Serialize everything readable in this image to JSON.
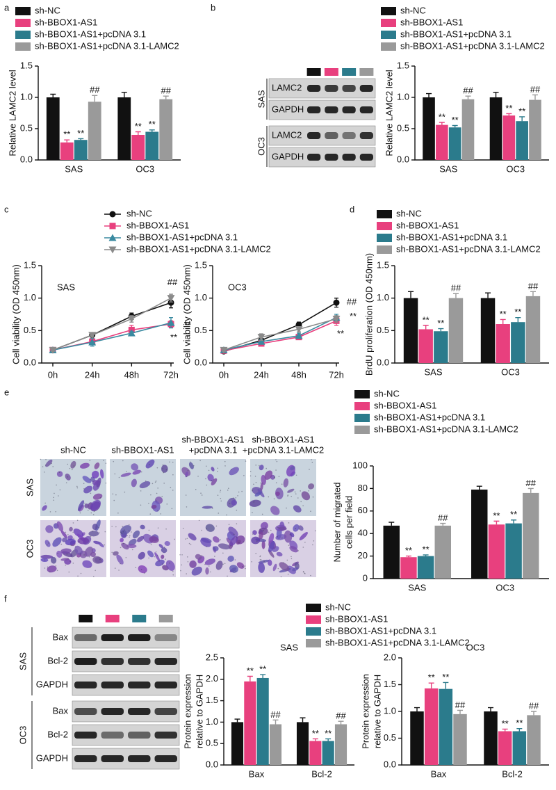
{
  "panel_letters": [
    "a",
    "b",
    "c",
    "d",
    "e",
    "f"
  ],
  "blots": [
    {
      "groups": [
        {
          "name": "SAS",
          "rows": [
            "LAMC2",
            "GAPDH"
          ]
        },
        {
          "name": "OC3",
          "rows": [
            "LAMC2",
            "GAPDH"
          ]
        }
      ]
    },
    {
      "groups": [
        {
          "name": "SAS",
          "rows": [
            "Bax",
            "Bcl-2",
            "GAPDH"
          ]
        },
        {
          "name": "OC3",
          "rows": [
            "Bax",
            "Bcl-2",
            "GAPDH"
          ]
        }
      ]
    }
  ],
  "migration": {
    "columns": [
      [
        "sh-NC"
      ],
      [
        "sh-BBOX1-AS1"
      ],
      [
        "sh-BBOX1-AS1",
        "+pcDNA 3.1"
      ],
      [
        "sh-BBOX1-AS1",
        "+pcDNA 3.1-LAMC2"
      ]
    ],
    "rows": [
      "SAS",
      "OC3"
    ]
  },
  "chart_data": [
    {
      "type": "bar",
      "ylabel": "Relative LAMC2 level",
      "categories": [
        "SAS",
        "OC3"
      ],
      "ylim": [
        0,
        1.5
      ],
      "yticks": [
        {
          "value": 0,
          "label": "0.0"
        },
        0.5,
        {
          "value": 1,
          "label": "1.0"
        },
        1.5
      ],
      "legend": true,
      "series": [
        {
          "name": "sh-NC",
          "color": "#111111",
          "values": [
            1.0,
            1.0
          ],
          "errors": [
            0.05,
            0.08
          ]
        },
        {
          "name": "sh-BBOX1-AS1",
          "color": "#e8407e",
          "values": [
            0.28,
            0.4
          ],
          "errors": [
            0.04,
            0.05
          ],
          "annotations": [
            "**",
            "**"
          ]
        },
        {
          "name": "sh-BBOX1-AS1+pcDNA 3.1",
          "color": "#2b7b8c",
          "values": [
            0.32,
            0.45
          ],
          "errors": [
            0.02,
            0.03
          ],
          "annotations": [
            "**",
            "**"
          ]
        },
        {
          "name": "sh-BBOX1-AS1+pcDNA 3.1-LAMC2",
          "color": "#9a9a9a",
          "values": [
            0.93,
            0.97
          ],
          "errors": [
            0.1,
            0.05
          ],
          "annotations": [
            "##",
            "##"
          ]
        }
      ]
    },
    {
      "type": "bar",
      "ylabel": "Relative LAMC2 level",
      "categories": [
        "SAS",
        "OC3"
      ],
      "ylim": [
        0,
        1.5
      ],
      "yticks": [
        {
          "value": 0,
          "label": "0.0"
        },
        0.5,
        {
          "value": 1,
          "label": "1.0"
        },
        1.5
      ],
      "legend": true,
      "series": [
        {
          "name": "sh-NC",
          "color": "#111111",
          "values": [
            1.0,
            1.0
          ],
          "errors": [
            0.06,
            0.08
          ]
        },
        {
          "name": "sh-BBOX1-AS1",
          "color": "#e8407e",
          "values": [
            0.56,
            0.71
          ],
          "errors": [
            0.04,
            0.03
          ],
          "annotations": [
            "**",
            "**"
          ]
        },
        {
          "name": "sh-BBOX1-AS1+pcDNA 3.1",
          "color": "#2b7b8c",
          "values": [
            0.52,
            0.62
          ],
          "errors": [
            0.03,
            0.07
          ],
          "annotations": [
            "**",
            "**"
          ]
        },
        {
          "name": "sh-BBOX1-AS1+pcDNA 3.1-LAMC2",
          "color": "#9a9a9a",
          "values": [
            0.97,
            0.96
          ],
          "errors": [
            0.05,
            0.08
          ],
          "annotations": [
            "##",
            "##"
          ]
        }
      ]
    },
    {
      "type": "line",
      "title": "SAS",
      "ylabel": "Cell viability (OD 450nm)",
      "categories": [
        "0h",
        "24h",
        "48h",
        "72h"
      ],
      "ylim": [
        0,
        1.5
      ],
      "yticks": [
        {
          "value": 0,
          "label": "0.0"
        },
        0.5,
        {
          "value": 1,
          "label": "1.0"
        },
        1.5
      ],
      "legend": true,
      "series": [
        {
          "name": "sh-NC",
          "color": "#111111",
          "marker": "circle",
          "values": [
            0.2,
            0.43,
            0.72,
            0.93
          ],
          "errors": [
            0.02,
            0.03,
            0.05,
            0.08
          ]
        },
        {
          "name": "sh-BBOX1-AS1",
          "color": "#e8407e",
          "marker": "square",
          "values": [
            0.2,
            0.33,
            0.51,
            0.6
          ],
          "errors": [
            0.02,
            0.03,
            0.07,
            0.05
          ],
          "annotations": [
            null,
            null,
            null,
            "**"
          ]
        },
        {
          "name": "sh-BBOX1-AS1+pcDNA 3.1",
          "color": "#3a8aa0",
          "marker": "triangle",
          "values": [
            0.2,
            0.32,
            0.46,
            0.62
          ],
          "errors": [
            0.02,
            0.06,
            0.03,
            0.08
          ],
          "annotations": [
            null,
            null,
            null,
            "**"
          ]
        },
        {
          "name": "sh-BBOX1-AS1+pcDNA 3.1-LAMC2",
          "color": "#8a8a8a",
          "marker": "triangle-down",
          "values": [
            0.2,
            0.43,
            0.68,
            1.0
          ],
          "errors": [
            0.02,
            0.03,
            0.05,
            0.06
          ],
          "annotations": [
            null,
            null,
            null,
            "##"
          ]
        }
      ]
    },
    {
      "type": "line",
      "title": "OC3",
      "ylabel": "Cell viability (OD 450nm)",
      "categories": [
        "0h",
        "24h",
        "48h",
        "72h"
      ],
      "ylim": [
        0,
        1.5
      ],
      "yticks": [
        {
          "value": 0,
          "label": "0.0"
        },
        0.5,
        {
          "value": 1,
          "label": "1.0"
        },
        1.5
      ],
      "series": [
        {
          "color": "#111111",
          "marker": "circle",
          "values": [
            0.18,
            0.35,
            0.59,
            0.93
          ],
          "errors": [
            0.02,
            0.03,
            0.04,
            0.07
          ],
          "annotations": [
            null,
            null,
            null,
            "##"
          ]
        },
        {
          "color": "#e8407e",
          "marker": "square",
          "values": [
            0.19,
            0.3,
            0.4,
            0.65
          ],
          "errors": [
            0.02,
            0.03,
            0.04,
            0.07
          ],
          "annotations": [
            null,
            null,
            null,
            "**"
          ]
        },
        {
          "color": "#3a8aa0",
          "marker": "triangle",
          "values": [
            0.2,
            0.33,
            0.42,
            0.7
          ],
          "errors": [
            0.02,
            0.03,
            0.04,
            0.05
          ],
          "annotations": [
            null,
            null,
            null,
            "**"
          ]
        },
        {
          "color": "#8a8a8a",
          "marker": "triangle-down",
          "values": [
            0.2,
            0.4,
            0.52,
            0.68
          ],
          "errors": [
            0.02,
            0.05,
            0.04,
            0.05
          ]
        }
      ]
    },
    {
      "type": "bar",
      "ylabel": "BrdU proliferation (OD 450nm)",
      "categories": [
        "SAS",
        "OC3"
      ],
      "ylim": [
        0,
        1.5
      ],
      "yticks": [
        {
          "value": 0,
          "label": "0.0"
        },
        0.5,
        {
          "value": 1,
          "label": "1.0"
        },
        1.5
      ],
      "legend": true,
      "series": [
        {
          "name": "sh-NC",
          "color": "#111111",
          "values": [
            1.0,
            1.0
          ],
          "errors": [
            0.1,
            0.08
          ]
        },
        {
          "name": "sh-BBOX1-AS1",
          "color": "#e8407e",
          "values": [
            0.52,
            0.6
          ],
          "errors": [
            0.06,
            0.07
          ],
          "annotations": [
            "**",
            "**"
          ]
        },
        {
          "name": "sh-BBOX1-AS1+pcDNA 3.1",
          "color": "#2b7b8c",
          "values": [
            0.49,
            0.63
          ],
          "errors": [
            0.04,
            0.07
          ],
          "annotations": [
            "**",
            "**"
          ]
        },
        {
          "name": "sh-BBOX1-AS1+pcDNA 3.1-LAMC2",
          "color": "#9a9a9a",
          "values": [
            1.0,
            1.03
          ],
          "errors": [
            0.07,
            0.07
          ],
          "annotations": [
            "##",
            "##"
          ]
        }
      ]
    },
    {
      "type": "bar",
      "ylabel": [
        "Number of migrated",
        "cells per field"
      ],
      "categories": [
        "SAS",
        "OC3"
      ],
      "ylim": [
        0,
        100
      ],
      "yticks": [
        0,
        20,
        40,
        60,
        80,
        100
      ],
      "legend": true,
      "series": [
        {
          "name": "sh-NC",
          "color": "#111111",
          "values": [
            47,
            79
          ],
          "errors": [
            3,
            3
          ]
        },
        {
          "name": "sh-BBOX1-AS1",
          "color": "#e8407e",
          "values": [
            19,
            48
          ],
          "errors": [
            1,
            3
          ],
          "annotations": [
            "**",
            "**"
          ]
        },
        {
          "name": "sh-BBOX1-AS1+pcDNA 3.1",
          "color": "#2b7b8c",
          "values": [
            20,
            49
          ],
          "errors": [
            1,
            3
          ],
          "annotations": [
            "**",
            "**"
          ]
        },
        {
          "name": "sh-BBOX1-AS1+pcDNA 3.1-LAMC2",
          "color": "#9a9a9a",
          "values": [
            47,
            76
          ],
          "errors": [
            2,
            4
          ],
          "annotations": [
            "##",
            "##"
          ]
        }
      ]
    },
    {
      "type": "bar",
      "title": "SAS",
      "ylabel": [
        "Protein expression",
        "relative to GAPDH"
      ],
      "categories": [
        "Bax",
        "Bcl-2"
      ],
      "ylim": [
        0,
        2.5
      ],
      "yticks": [
        {
          "value": 0,
          "label": "0.0"
        },
        0.5,
        {
          "value": 1,
          "label": "1.0"
        },
        1.5,
        {
          "value": 2,
          "label": "2.0"
        },
        2.5
      ],
      "legend": true,
      "series": [
        {
          "name": "sh-NC",
          "color": "#111111",
          "values": [
            1.0,
            1.0
          ],
          "errors": [
            0.07,
            0.1
          ]
        },
        {
          "name": "sh-BBOX1-AS1",
          "color": "#e8407e",
          "values": [
            1.95,
            0.56
          ],
          "errors": [
            0.12,
            0.05
          ],
          "annotations": [
            "**",
            "**"
          ]
        },
        {
          "name": "sh-BBOX1-AS1+pcDNA 3.1",
          "color": "#2b7b8c",
          "values": [
            2.03,
            0.56
          ],
          "errors": [
            0.08,
            0.05
          ],
          "annotations": [
            "**",
            "**"
          ]
        },
        {
          "name": "sh-BBOX1-AS1+pcDNA 3.1-LAMC2",
          "color": "#9a9a9a",
          "values": [
            0.95,
            0.95
          ],
          "errors": [
            0.1,
            0.07
          ],
          "annotations": [
            "##",
            "##"
          ]
        }
      ]
    },
    {
      "type": "bar",
      "title": "OC3",
      "ylabel": [
        "Protein expression",
        "relative to GAPDH"
      ],
      "categories": [
        "Bax",
        "Bcl-2"
      ],
      "ylim": [
        0,
        2
      ],
      "yticks": [
        {
          "value": 0,
          "label": "0.0"
        },
        0.5,
        {
          "value": 1,
          "label": "1.0"
        },
        1.5,
        {
          "value": 2,
          "label": "2.0"
        }
      ],
      "series": [
        {
          "color": "#111111",
          "values": [
            1.0,
            1.0
          ],
          "errors": [
            0.07,
            0.07
          ]
        },
        {
          "color": "#e8407e",
          "values": [
            1.43,
            0.63
          ],
          "errors": [
            0.1,
            0.04
          ],
          "annotations": [
            "**",
            "**"
          ]
        },
        {
          "color": "#2b7b8c",
          "values": [
            1.42,
            0.63
          ],
          "errors": [
            0.12,
            0.05
          ],
          "annotations": [
            "**",
            "**"
          ]
        },
        {
          "color": "#9a9a9a",
          "values": [
            0.95,
            0.93
          ],
          "errors": [
            0.07,
            0.07
          ],
          "annotations": [
            "##",
            "##"
          ]
        }
      ]
    }
  ]
}
